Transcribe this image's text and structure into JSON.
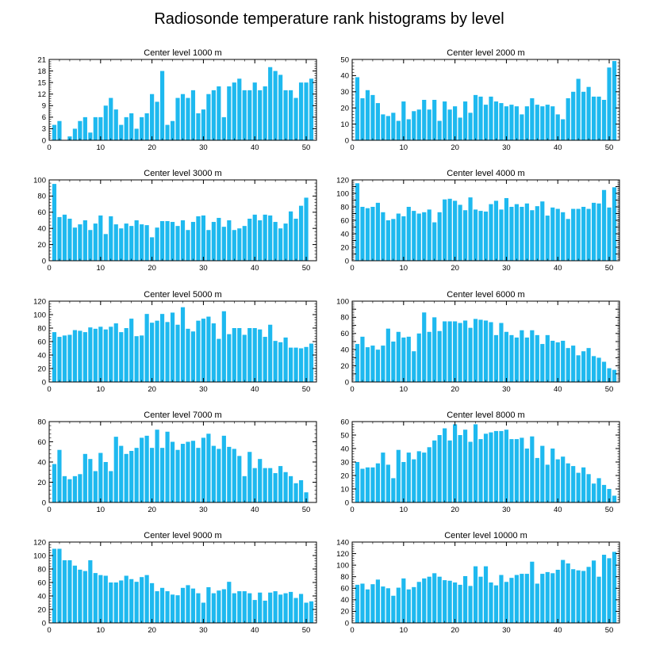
{
  "figure": {
    "title": "Radiosonde temperature rank histograms by level"
  },
  "colors": {
    "bar": "#1eb9ef",
    "axis": "#000000",
    "background": "#ffffff"
  },
  "chart_data": [
    {
      "type": "bar",
      "title": "Center level 1000 m",
      "x": [
        1,
        2,
        3,
        4,
        5,
        6,
        7,
        8,
        9,
        10,
        11,
        12,
        13,
        14,
        15,
        16,
        17,
        18,
        19,
        20,
        21,
        22,
        23,
        24,
        25,
        26,
        27,
        28,
        29,
        30,
        31,
        32,
        33,
        34,
        35,
        36,
        37,
        38,
        39,
        40,
        41,
        42,
        43,
        44,
        45,
        46,
        47,
        48,
        49,
        50,
        51
      ],
      "values": [
        4,
        5,
        0,
        1,
        3,
        5,
        6,
        2,
        6,
        6,
        9,
        11,
        8,
        4,
        6,
        7,
        3,
        6,
        7,
        12,
        10,
        18,
        4,
        5,
        11,
        12,
        11,
        13,
        7,
        8,
        12,
        13,
        14,
        6,
        14,
        15,
        16,
        13,
        13,
        15,
        13,
        14,
        19,
        18,
        17,
        13,
        13,
        11,
        15,
        15,
        16
      ],
      "xlim": [
        0,
        52
      ],
      "ylim": [
        0,
        21
      ],
      "xticks": [
        0,
        10,
        20,
        30,
        40,
        50
      ],
      "yticks": [
        0,
        3,
        6,
        9,
        12,
        15,
        18,
        21
      ]
    },
    {
      "type": "bar",
      "title": "Center level 2000 m",
      "x": [
        1,
        2,
        3,
        4,
        5,
        6,
        7,
        8,
        9,
        10,
        11,
        12,
        13,
        14,
        15,
        16,
        17,
        18,
        19,
        20,
        21,
        22,
        23,
        24,
        25,
        26,
        27,
        28,
        29,
        30,
        31,
        32,
        33,
        34,
        35,
        36,
        37,
        38,
        39,
        40,
        41,
        42,
        43,
        44,
        45,
        46,
        47,
        48,
        49,
        50,
        51
      ],
      "values": [
        39,
        26,
        31,
        28,
        23,
        16,
        15,
        17,
        12,
        24,
        13,
        18,
        19,
        25,
        19,
        25,
        12,
        24,
        19,
        21,
        14,
        24,
        17,
        28,
        27,
        22,
        27,
        24,
        23,
        21,
        22,
        21,
        16,
        21,
        26,
        22,
        21,
        22,
        21,
        16,
        13,
        26,
        30,
        38,
        30,
        33,
        27,
        27,
        25,
        45,
        49
      ],
      "xlim": [
        0,
        52
      ],
      "ylim": [
        0,
        50
      ],
      "xticks": [
        0,
        10,
        20,
        30,
        40,
        50
      ],
      "yticks": [
        0,
        10,
        20,
        30,
        40,
        50
      ]
    },
    {
      "type": "bar",
      "title": "Center level 3000 m",
      "x": [
        1,
        2,
        3,
        4,
        5,
        6,
        7,
        8,
        9,
        10,
        11,
        12,
        13,
        14,
        15,
        16,
        17,
        18,
        19,
        20,
        21,
        22,
        23,
        24,
        25,
        26,
        27,
        28,
        29,
        30,
        31,
        32,
        33,
        34,
        35,
        36,
        37,
        38,
        39,
        40,
        41,
        42,
        43,
        44,
        45,
        46,
        47,
        48,
        49,
        50,
        51
      ],
      "values": [
        95,
        54,
        57,
        52,
        41,
        45,
        50,
        38,
        46,
        56,
        33,
        55,
        45,
        40,
        46,
        43,
        50,
        45,
        44,
        29,
        41,
        49,
        49,
        48,
        43,
        50,
        38,
        48,
        55,
        56,
        38,
        48,
        53,
        42,
        50,
        38,
        40,
        43,
        52,
        57,
        50,
        57,
        56,
        48,
        40,
        46,
        61,
        52,
        68,
        78,
        0
      ],
      "xlim": [
        0,
        52
      ],
      "ylim": [
        0,
        100
      ],
      "xticks": [
        0,
        10,
        20,
        30,
        40,
        50
      ],
      "yticks": [
        0,
        20,
        40,
        60,
        80,
        100
      ]
    },
    {
      "type": "bar",
      "title": "Center level 4000 m",
      "x": [
        1,
        2,
        3,
        4,
        5,
        6,
        7,
        8,
        9,
        10,
        11,
        12,
        13,
        14,
        15,
        16,
        17,
        18,
        19,
        20,
        21,
        22,
        23,
        24,
        25,
        26,
        27,
        28,
        29,
        30,
        31,
        32,
        33,
        34,
        35,
        36,
        37,
        38,
        39,
        40,
        41,
        42,
        43,
        44,
        45,
        46,
        47,
        48,
        49,
        50,
        51
      ],
      "values": [
        115,
        80,
        78,
        80,
        86,
        72,
        60,
        62,
        70,
        66,
        80,
        74,
        70,
        72,
        76,
        57,
        72,
        91,
        92,
        89,
        83,
        75,
        94,
        76,
        74,
        73,
        84,
        89,
        76,
        93,
        80,
        84,
        80,
        85,
        75,
        81,
        88,
        67,
        79,
        77,
        72,
        62,
        77,
        77,
        80,
        77,
        86,
        85,
        105,
        79,
        109
      ],
      "xlim": [
        0,
        52
      ],
      "ylim": [
        0,
        120
      ],
      "xticks": [
        0,
        10,
        20,
        30,
        40,
        50
      ],
      "yticks": [
        0,
        10,
        20,
        30,
        40,
        50,
        60,
        70,
        80,
        90,
        100,
        110,
        120
      ],
      "ytick_labels": [
        "0",
        "",
        "20",
        "",
        "40",
        "",
        "60",
        "",
        "80",
        "",
        "100",
        "",
        "120"
      ]
    },
    {
      "type": "bar",
      "title": "Center level 5000 m",
      "x": [
        1,
        2,
        3,
        4,
        5,
        6,
        7,
        8,
        9,
        10,
        11,
        12,
        13,
        14,
        15,
        16,
        17,
        18,
        19,
        20,
        21,
        22,
        23,
        24,
        25,
        26,
        27,
        28,
        29,
        30,
        31,
        32,
        33,
        34,
        35,
        36,
        37,
        38,
        39,
        40,
        41,
        42,
        43,
        44,
        45,
        46,
        47,
        48,
        49,
        50,
        51
      ],
      "values": [
        74,
        67,
        69,
        70,
        77,
        76,
        74,
        81,
        79,
        82,
        78,
        82,
        87,
        74,
        80,
        94,
        68,
        69,
        101,
        88,
        91,
        101,
        89,
        103,
        85,
        111,
        79,
        75,
        91,
        94,
        97,
        87,
        64,
        105,
        71,
        80,
        80,
        70,
        80,
        80,
        78,
        67,
        85,
        61,
        59,
        66,
        51,
        51,
        50,
        52,
        57
      ],
      "xlim": [
        0,
        52
      ],
      "ylim": [
        0,
        120
      ],
      "xticks": [
        0,
        10,
        20,
        30,
        40,
        50
      ],
      "yticks": [
        0,
        20,
        40,
        60,
        80,
        100,
        120
      ]
    },
    {
      "type": "bar",
      "title": "Center level 6000 m",
      "x": [
        1,
        2,
        3,
        4,
        5,
        6,
        7,
        8,
        9,
        10,
        11,
        12,
        13,
        14,
        15,
        16,
        17,
        18,
        19,
        20,
        21,
        22,
        23,
        24,
        25,
        26,
        27,
        28,
        29,
        30,
        31,
        32,
        33,
        34,
        35,
        36,
        37,
        38,
        39,
        40,
        41,
        42,
        43,
        44,
        45,
        46,
        47,
        48,
        49,
        50,
        51
      ],
      "values": [
        47,
        56,
        43,
        45,
        40,
        45,
        66,
        50,
        62,
        55,
        56,
        38,
        60,
        86,
        62,
        80,
        63,
        75,
        75,
        75,
        73,
        76,
        67,
        78,
        77,
        76,
        74,
        58,
        73,
        62,
        58,
        55,
        64,
        55,
        64,
        58,
        47,
        58,
        51,
        49,
        51,
        42,
        45,
        33,
        38,
        42,
        32,
        30,
        25,
        17,
        15
      ],
      "xlim": [
        0,
        52
      ],
      "ylim": [
        0,
        100
      ],
      "xticks": [
        0,
        10,
        20,
        30,
        40,
        50
      ],
      "yticks": [
        0,
        10,
        20,
        30,
        40,
        50,
        60,
        70,
        80,
        90,
        100
      ],
      "ytick_labels": [
        "0",
        "",
        "20",
        "",
        "40",
        "",
        "60",
        "",
        "80",
        "",
        "100"
      ]
    },
    {
      "type": "bar",
      "title": "Center level 7000 m",
      "x": [
        1,
        2,
        3,
        4,
        5,
        6,
        7,
        8,
        9,
        10,
        11,
        12,
        13,
        14,
        15,
        16,
        17,
        18,
        19,
        20,
        21,
        22,
        23,
        24,
        25,
        26,
        27,
        28,
        29,
        30,
        31,
        32,
        33,
        34,
        35,
        36,
        37,
        38,
        39,
        40,
        41,
        42,
        43,
        44,
        45,
        46,
        47,
        48,
        49,
        50,
        51
      ],
      "values": [
        38,
        52,
        26,
        23,
        26,
        28,
        48,
        43,
        31,
        49,
        40,
        31,
        65,
        56,
        48,
        51,
        54,
        64,
        66,
        54,
        72,
        54,
        70,
        60,
        52,
        58,
        60,
        61,
        54,
        64,
        68,
        56,
        53,
        66,
        55,
        53,
        46,
        26,
        50,
        34,
        43,
        34,
        34,
        29,
        36,
        30,
        26,
        19,
        22,
        10,
        0
      ],
      "xlim": [
        0,
        52
      ],
      "ylim": [
        0,
        80
      ],
      "xticks": [
        0,
        10,
        20,
        30,
        40,
        50
      ],
      "yticks": [
        0,
        20,
        40,
        60,
        80
      ]
    },
    {
      "type": "bar",
      "title": "Center level 8000 m",
      "x": [
        1,
        2,
        3,
        4,
        5,
        6,
        7,
        8,
        9,
        10,
        11,
        12,
        13,
        14,
        15,
        16,
        17,
        18,
        19,
        20,
        21,
        22,
        23,
        24,
        25,
        26,
        27,
        28,
        29,
        30,
        31,
        32,
        33,
        34,
        35,
        36,
        37,
        38,
        39,
        40,
        41,
        42,
        43,
        44,
        45,
        46,
        47,
        48,
        49,
        50,
        51
      ],
      "values": [
        30,
        25,
        26,
        26,
        29,
        37,
        28,
        18,
        39,
        30,
        37,
        32,
        38,
        37,
        41,
        46,
        50,
        55,
        46,
        58,
        50,
        54,
        45,
        58,
        47,
        51,
        52,
        53,
        53,
        54,
        47,
        47,
        48,
        40,
        49,
        33,
        42,
        28,
        40,
        32,
        34,
        29,
        27,
        22,
        26,
        21,
        14,
        18,
        13,
        10,
        5
      ],
      "xlim": [
        0,
        52
      ],
      "ylim": [
        0,
        60
      ],
      "xticks": [
        0,
        10,
        20,
        30,
        40,
        50
      ],
      "yticks": [
        0,
        10,
        20,
        30,
        40,
        50,
        60
      ]
    },
    {
      "type": "bar",
      "title": "Center level 9000 m",
      "x": [
        1,
        2,
        3,
        4,
        5,
        6,
        7,
        8,
        9,
        10,
        11,
        12,
        13,
        14,
        15,
        16,
        17,
        18,
        19,
        20,
        21,
        22,
        23,
        24,
        25,
        26,
        27,
        28,
        29,
        30,
        31,
        32,
        33,
        34,
        35,
        36,
        37,
        38,
        39,
        40,
        41,
        42,
        43,
        44,
        45,
        46,
        47,
        48,
        49,
        50,
        51
      ],
      "values": [
        110,
        110,
        93,
        93,
        85,
        79,
        77,
        93,
        74,
        71,
        70,
        60,
        60,
        63,
        70,
        65,
        61,
        68,
        71,
        59,
        47,
        52,
        47,
        42,
        41,
        52,
        56,
        51,
        44,
        30,
        53,
        44,
        48,
        50,
        61,
        44,
        47,
        47,
        44,
        34,
        45,
        33,
        45,
        47,
        42,
        44,
        46,
        37,
        43,
        30,
        32
      ],
      "xlim": [
        0,
        52
      ],
      "ylim": [
        0,
        120
      ],
      "xticks": [
        0,
        10,
        20,
        30,
        40,
        50
      ],
      "yticks": [
        0,
        20,
        40,
        60,
        80,
        100,
        120
      ]
    },
    {
      "type": "bar",
      "title": "Center level 10000 m",
      "x": [
        1,
        2,
        3,
        4,
        5,
        6,
        7,
        8,
        9,
        10,
        11,
        12,
        13,
        14,
        15,
        16,
        17,
        18,
        19,
        20,
        21,
        22,
        23,
        24,
        25,
        26,
        27,
        28,
        29,
        30,
        31,
        32,
        33,
        34,
        35,
        36,
        37,
        38,
        39,
        40,
        41,
        42,
        43,
        44,
        45,
        46,
        47,
        48,
        49,
        50,
        51
      ],
      "values": [
        66,
        68,
        58,
        67,
        75,
        63,
        60,
        47,
        61,
        77,
        58,
        62,
        71,
        77,
        80,
        86,
        80,
        74,
        73,
        70,
        66,
        81,
        64,
        98,
        80,
        98,
        70,
        65,
        83,
        71,
        78,
        83,
        85,
        85,
        106,
        68,
        85,
        88,
        86,
        92,
        109,
        103,
        93,
        91,
        90,
        97,
        108,
        80,
        118,
        112,
        123
      ],
      "xlim": [
        0,
        52
      ],
      "ylim": [
        0,
        140
      ],
      "xticks": [
        0,
        10,
        20,
        30,
        40,
        50
      ],
      "yticks": [
        0,
        20,
        40,
        60,
        80,
        100,
        120,
        140
      ]
    }
  ]
}
